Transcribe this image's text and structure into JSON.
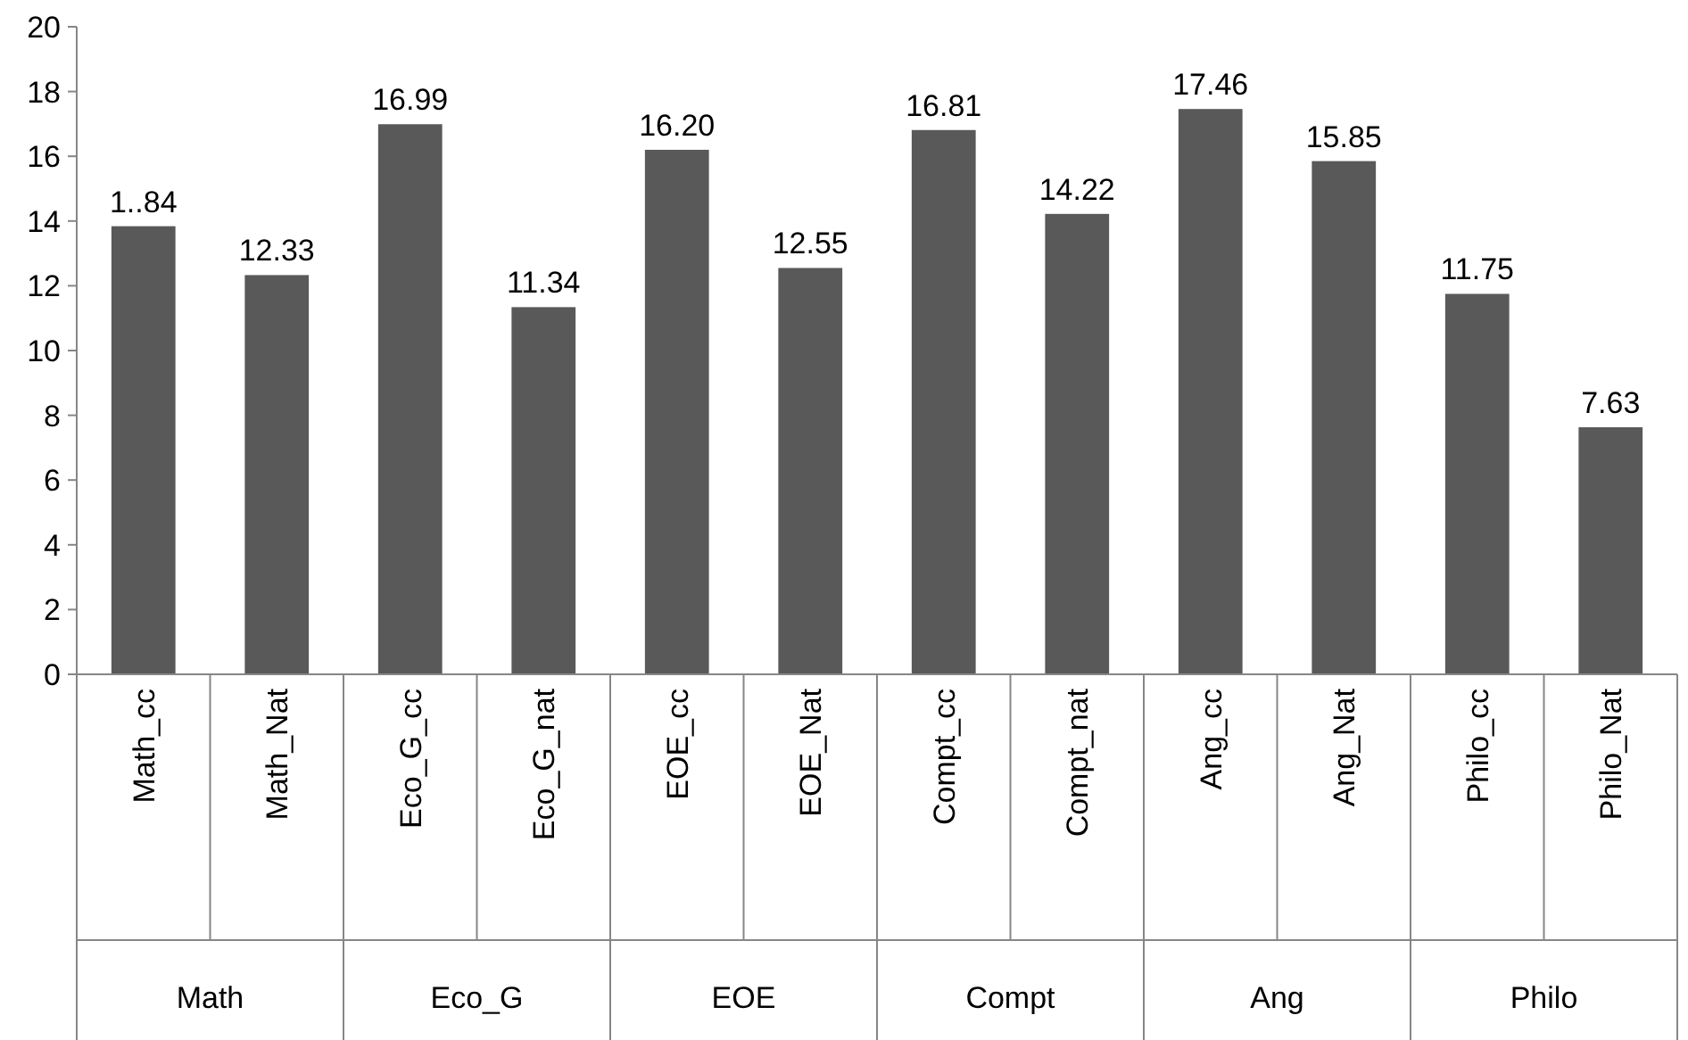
{
  "chart_data": {
    "type": "bar",
    "categories": [
      "Math_cc",
      "Math_Nat",
      "Eco_G_cc",
      "Eco_G_nat",
      "EOE_cc",
      "EOE_Nat",
      "Compt_cc",
      "Compt_nat",
      "Ang_cc",
      "Ang_Nat",
      "Philo_cc",
      "Philo_Nat"
    ],
    "values": [
      13.84,
      12.33,
      16.99,
      11.34,
      16.2,
      12.55,
      16.81,
      14.22,
      17.46,
      15.85,
      11.75,
      7.63
    ],
    "value_labels": [
      "1..84",
      "12.33",
      "16.99",
      "11.34",
      "16.20",
      "12.55",
      "16.81",
      "14.22",
      "17.46",
      "15.85",
      "11.75",
      "7.63"
    ],
    "color": "#595959",
    "ylim": [
      0,
      20
    ],
    "yticks": [
      0,
      2,
      4,
      6,
      8,
      10,
      12,
      14,
      16,
      18,
      20
    ],
    "annotations": [
      "Math",
      "Eco_G",
      "EOE",
      "Compt",
      "Ang",
      "Philo"
    ],
    "tick_labels": true
  }
}
